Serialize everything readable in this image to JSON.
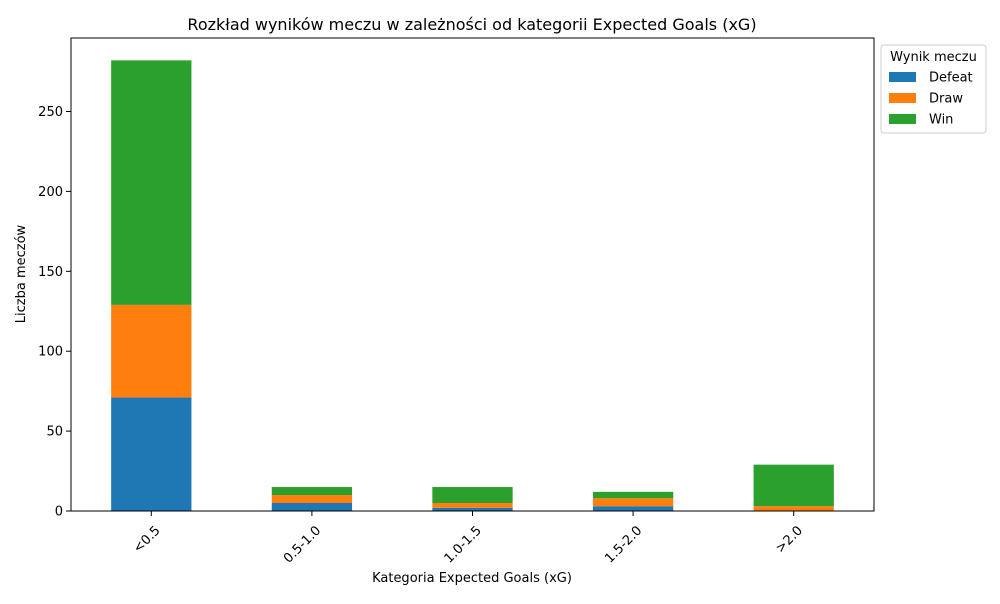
{
  "chart_data": {
    "type": "bar",
    "stacked": true,
    "title": "Rozkład wyników meczu w zależności od kategorii Expected Goals (xG)",
    "xlabel": "Kategoria Expected Goals (xG)",
    "ylabel": "Liczba meczów",
    "categories": [
      "<0.5",
      "0.5-1.0",
      "1.0-1.5",
      "1.5-2.0",
      ">2.0"
    ],
    "series": [
      {
        "name": "Defeat",
        "color": "#1f77b4",
        "values": [
          71,
          5,
          2,
          3,
          0
        ]
      },
      {
        "name": "Draw",
        "color": "#ff7f0e",
        "values": [
          58,
          5,
          3,
          5,
          3
        ]
      },
      {
        "name": "Win",
        "color": "#2ca02c",
        "values": [
          153,
          5,
          10,
          4,
          26
        ]
      }
    ],
    "ylim": [
      0,
      296
    ],
    "yticks": [
      0,
      50,
      100,
      150,
      200,
      250
    ],
    "legend": {
      "title": "Wynik meczu",
      "placement": "outside-right-top"
    },
    "grid": false
  }
}
